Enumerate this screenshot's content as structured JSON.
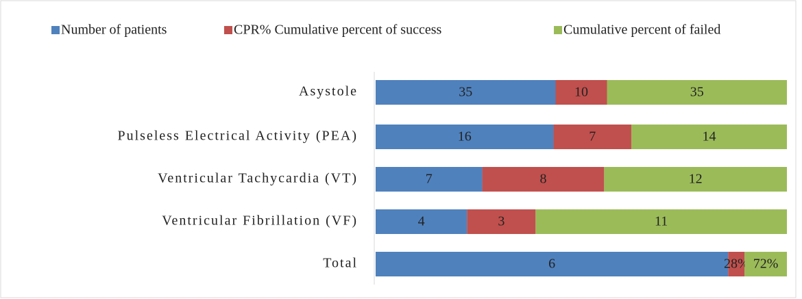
{
  "chart_data": {
    "type": "bar",
    "orientation": "horizontal",
    "stacking": "percent",
    "categories": [
      "Asystole",
      "Pulseless Electrical Activity (PEA)",
      "Ventricular Tachycardia (VT)",
      "Ventricular Fibrillation (VF)",
      "Total"
    ],
    "series": [
      {
        "name": "Number of patients",
        "color": "#4f81bd",
        "values": [
          35,
          16,
          7,
          4,
          6
        ]
      },
      {
        "name": "CPR% Cumulative percent of success",
        "color": "#c0504d",
        "values": [
          10,
          7,
          8,
          3,
          0.28
        ],
        "value_labels": [
          "10",
          "7",
          "8",
          "3",
          "28%"
        ]
      },
      {
        "name": "Cumulative percent of failed",
        "color": "#9bbb59",
        "values": [
          35,
          14,
          12,
          11,
          0.72
        ],
        "value_labels": [
          "35",
          "14",
          "12",
          "11",
          "72%"
        ]
      }
    ],
    "legend": "top"
  }
}
